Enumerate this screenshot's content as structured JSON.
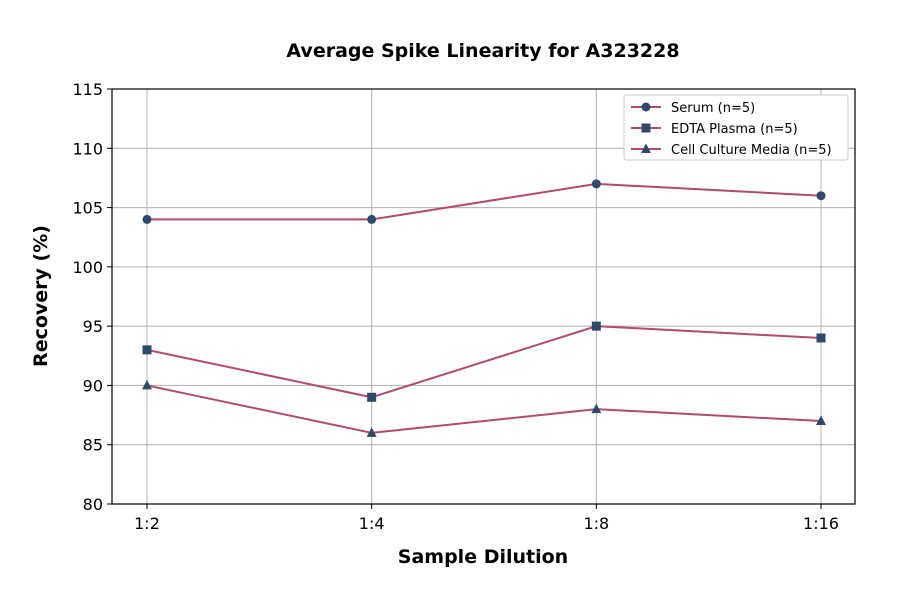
{
  "chart_data": {
    "type": "line",
    "title": "Average Spike Linearity for A323228",
    "xlabel": "Sample Dilution",
    "ylabel": "Recovery (%)",
    "categories": [
      "1:2",
      "1:4",
      "1:8",
      "1:16"
    ],
    "ylim": [
      80,
      115
    ],
    "yticks": [
      80,
      85,
      90,
      95,
      100,
      105,
      110,
      115
    ],
    "grid": true,
    "legend_position": "top-right",
    "line_color": "#b5496e",
    "marker_color": "#2e4a6b",
    "series": [
      {
        "name": "Serum (n=5)",
        "marker": "circle",
        "values": [
          104,
          104,
          107,
          106
        ]
      },
      {
        "name": "EDTA Plasma (n=5)",
        "marker": "square",
        "values": [
          93,
          89,
          95,
          94
        ]
      },
      {
        "name": "Cell Culture Media (n=5)",
        "marker": "triangle",
        "values": [
          90,
          86,
          88,
          87
        ]
      }
    ]
  }
}
